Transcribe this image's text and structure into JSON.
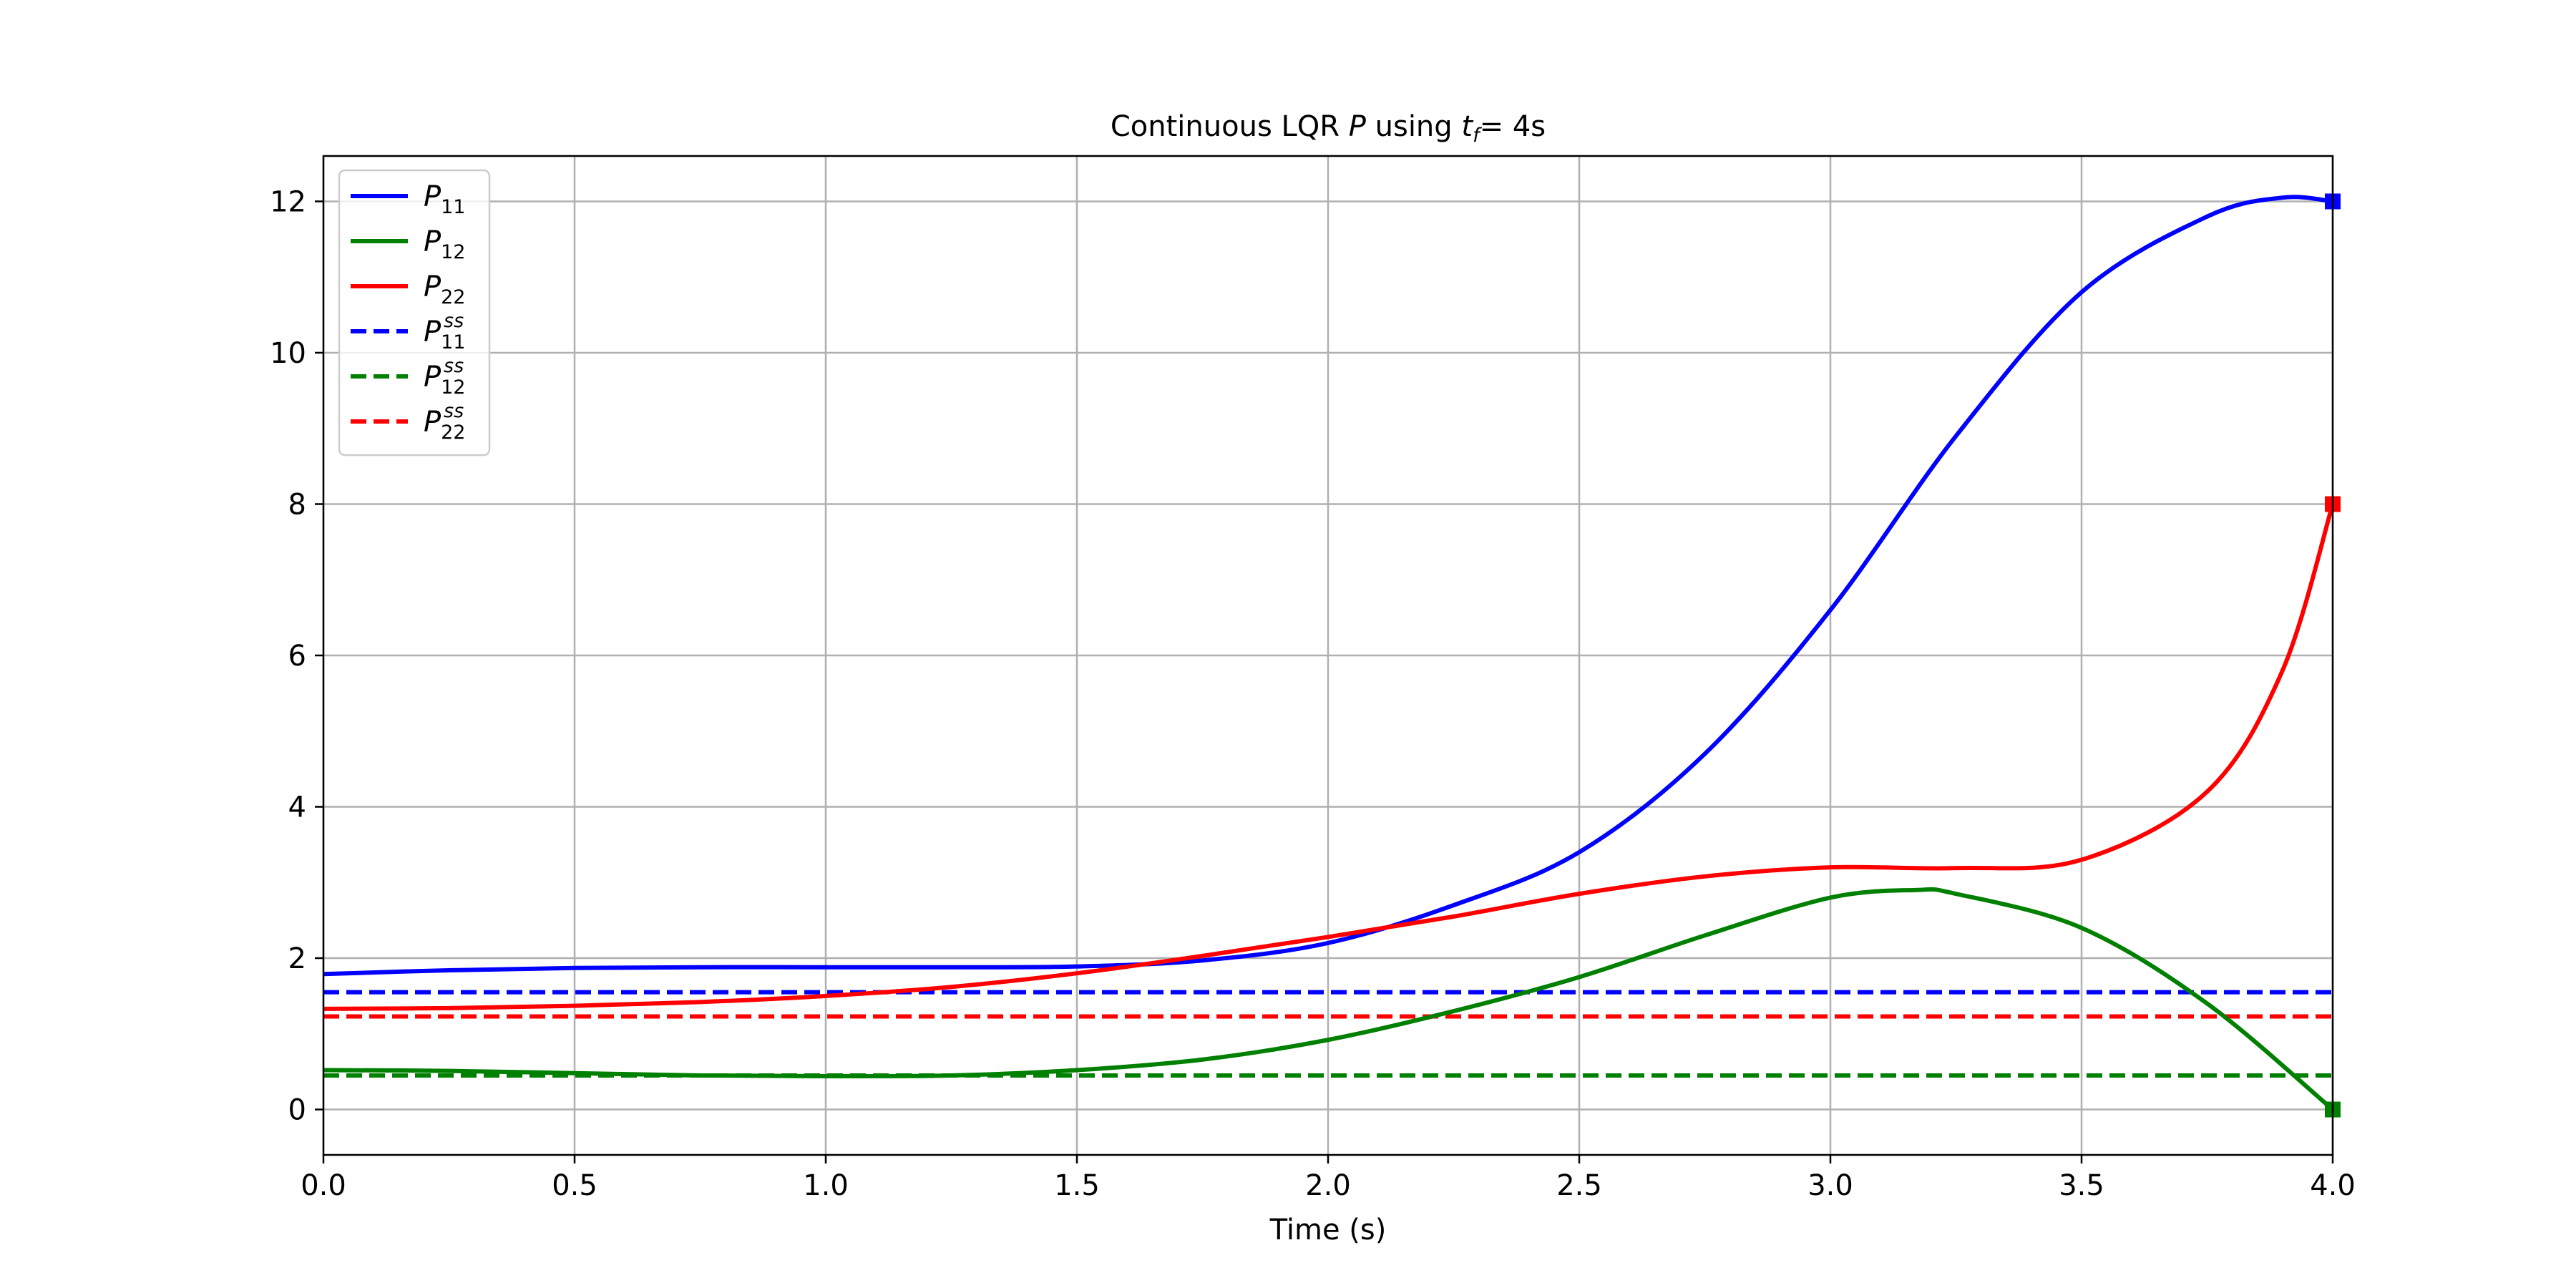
{
  "chart_data": {
    "type": "line",
    "title_prefix": "Continuous LQR",
    "title_symbol": "P",
    "title_using": "using",
    "title_tf_symbol": "t",
    "title_tf_sub": "f",
    "title_tf_value": "= 4s",
    "xlabel": "Time (s)",
    "ylabel": "",
    "xlim": [
      0,
      4
    ],
    "ylim": [
      -0.6,
      12.6
    ],
    "xticks": [
      0.0,
      0.5,
      1.0,
      1.5,
      2.0,
      2.5,
      3.0,
      3.5,
      4.0
    ],
    "xtick_labels": [
      "0.0",
      "0.5",
      "1.0",
      "1.5",
      "2.0",
      "2.5",
      "3.0",
      "3.5",
      "4.0"
    ],
    "yticks": [
      0,
      2,
      4,
      6,
      8,
      10,
      12
    ],
    "ytick_labels": [
      "0",
      "2",
      "4",
      "6",
      "8",
      "10",
      "12"
    ],
    "grid": true,
    "legend_position": "upper-left",
    "series": [
      {
        "name": "P_11",
        "label_base": "P",
        "label_sub": "11",
        "label_sup": "",
        "color": "#0000ff",
        "style": "solid",
        "x": [
          0.0,
          0.25,
          0.5,
          0.75,
          1.0,
          1.25,
          1.5,
          1.75,
          2.0,
          2.25,
          2.5,
          2.75,
          3.0,
          3.25,
          3.5,
          3.75,
          3.9,
          4.0
        ],
        "y": [
          1.79,
          1.84,
          1.87,
          1.88,
          1.88,
          1.88,
          1.89,
          1.97,
          2.2,
          2.7,
          3.4,
          4.7,
          6.6,
          8.9,
          10.8,
          11.8,
          12.05,
          12.0
        ],
        "end_marker": true
      },
      {
        "name": "P_12",
        "label_base": "P",
        "label_sub": "12",
        "label_sup": "",
        "color": "#008000",
        "style": "solid",
        "x": [
          0.0,
          0.25,
          0.5,
          0.75,
          1.0,
          1.25,
          1.5,
          1.75,
          2.0,
          2.25,
          2.5,
          2.75,
          3.0,
          3.17,
          3.25,
          3.5,
          3.75,
          4.0
        ],
        "y": [
          0.52,
          0.51,
          0.48,
          0.45,
          0.44,
          0.45,
          0.52,
          0.66,
          0.92,
          1.3,
          1.75,
          2.3,
          2.8,
          2.9,
          2.85,
          2.4,
          1.4,
          0.0
        ],
        "end_marker": true
      },
      {
        "name": "P_22",
        "label_base": "P",
        "label_sub": "22",
        "label_sup": "",
        "color": "#ff0000",
        "style": "solid",
        "x": [
          0.0,
          0.25,
          0.5,
          0.75,
          1.0,
          1.25,
          1.5,
          1.75,
          2.0,
          2.25,
          2.5,
          2.75,
          3.0,
          3.25,
          3.5,
          3.75,
          3.9,
          4.0
        ],
        "y": [
          1.33,
          1.34,
          1.37,
          1.42,
          1.5,
          1.62,
          1.8,
          2.03,
          2.28,
          2.55,
          2.85,
          3.08,
          3.2,
          3.19,
          3.3,
          4.2,
          5.8,
          8.0
        ],
        "end_marker": true
      },
      {
        "name": "P_11^ss",
        "label_base": "P",
        "label_sub": "11",
        "label_sup": "ss",
        "color": "#0000ff",
        "style": "dashed",
        "x": [
          0.0,
          4.0
        ],
        "y": [
          1.55,
          1.55
        ],
        "end_marker": false
      },
      {
        "name": "P_12^ss",
        "label_base": "P",
        "label_sub": "12",
        "label_sup": "ss",
        "color": "#008000",
        "style": "dashed",
        "x": [
          0.0,
          4.0
        ],
        "y": [
          0.45,
          0.45
        ],
        "end_marker": false
      },
      {
        "name": "P_22^ss",
        "label_base": "P",
        "label_sub": "22",
        "label_sup": "ss",
        "color": "#ff0000",
        "style": "dashed",
        "x": [
          0.0,
          4.0
        ],
        "y": [
          1.23,
          1.23
        ],
        "end_marker": false
      }
    ]
  }
}
